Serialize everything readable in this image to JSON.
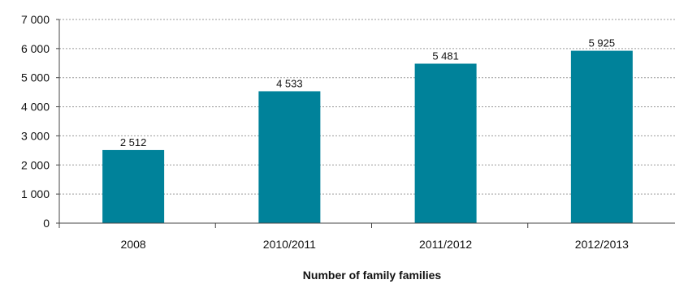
{
  "chart_data": {
    "type": "bar",
    "categories": [
      "2008",
      "2010/2011",
      "2011/2012",
      "2012/2013"
    ],
    "values": [
      2512,
      4533,
      5481,
      5925
    ],
    "data_labels": [
      "2 512",
      "4 533",
      "5 481",
      "5 925"
    ],
    "title": "",
    "xlabel": "Number of family families",
    "ylabel": "",
    "ylim": [
      0,
      7000
    ],
    "yticks": [
      0,
      1000,
      2000,
      3000,
      4000,
      5000,
      6000,
      7000
    ],
    "ytick_labels": [
      "0",
      "1 000",
      "2 000",
      "3 000",
      "4 000",
      "5 000",
      "6 000",
      "7 000"
    ],
    "grid": "horizontal dashed",
    "legend": "none",
    "bar_color": "#00829a"
  }
}
